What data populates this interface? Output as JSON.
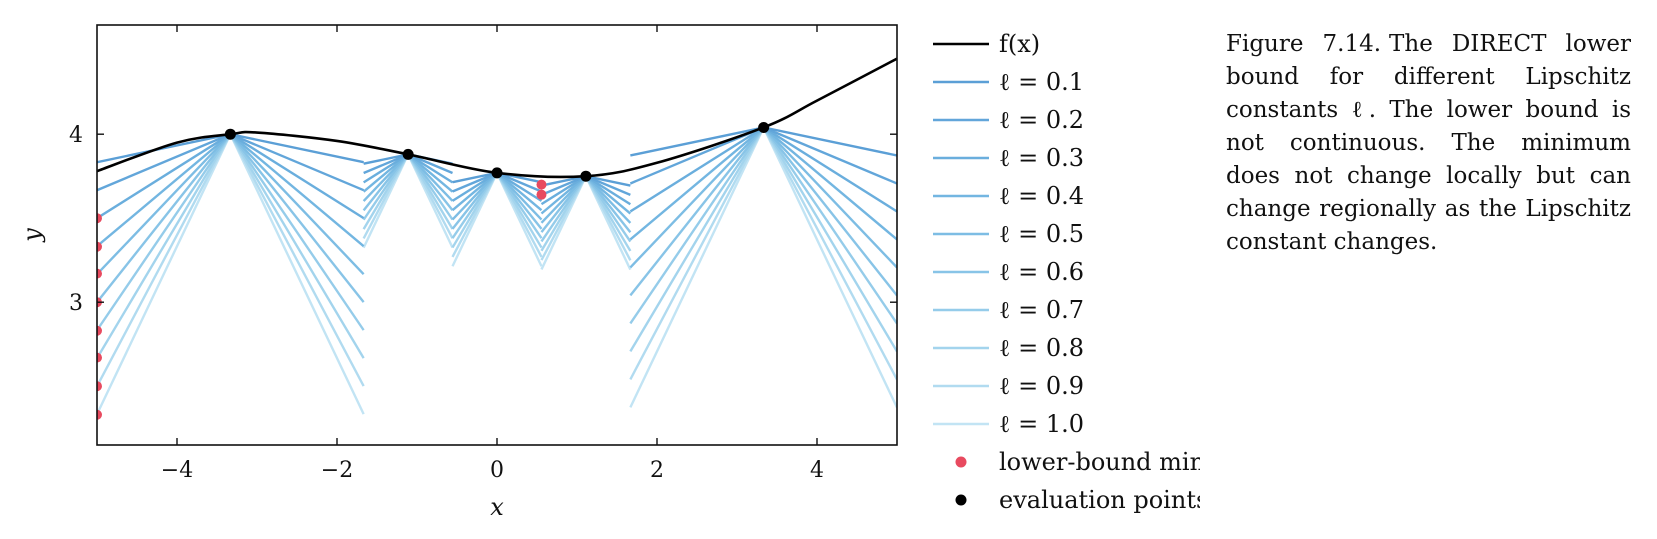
{
  "caption": {
    "number": "Figure 7.14.",
    "text": "The DIRECT lower bound for different Lipschitz constants ℓ. The lower bound is not continuous. The minimum does not change locally but can change regionally as the Lipschitz constant changes."
  },
  "chart_data": {
    "type": "line",
    "xlabel": "x",
    "ylabel": "y",
    "xlim": [
      -5,
      5
    ],
    "ylim": [
      2.15,
      4.65
    ],
    "xticks": [
      -4,
      -2,
      0,
      2,
      4
    ],
    "xtick_labels": [
      "−4",
      "−2",
      "0",
      "2",
      "4"
    ],
    "yticks": [
      3,
      4
    ],
    "ytick_labels": [
      "3",
      "4"
    ],
    "grid": false,
    "legend_placement": "outside-right",
    "function": {
      "name": "f(x)",
      "color": "#000000",
      "x": [
        -5,
        -4,
        -3.33,
        -3,
        -2,
        -1.11,
        0,
        1.11,
        2,
        3.33,
        4,
        5
      ],
      "y": [
        3.78,
        3.95,
        4.0,
        4.01,
        3.96,
        3.88,
        3.77,
        3.75,
        3.83,
        4.04,
        4.2,
        4.45
      ]
    },
    "intervals": [
      [
        -5,
        -1.667
      ],
      [
        -1.667,
        -0.556
      ],
      [
        -0.556,
        0.556
      ],
      [
        0.556,
        1.667
      ],
      [
        1.667,
        5
      ]
    ],
    "evaluation_points": {
      "x": [
        -3.333,
        -1.111,
        0,
        1.111,
        3.333
      ],
      "y": [
        4.0,
        3.88,
        3.77,
        3.75,
        4.04
      ]
    },
    "lipschitz_constants": [
      0.1,
      0.2,
      0.3,
      0.4,
      0.5,
      0.6,
      0.7,
      0.8,
      0.9,
      1.0
    ],
    "lower_bound_colors": [
      "#5b9fd6",
      "#62a6da",
      "#6aaedd",
      "#73b6e1",
      "#7dbde4",
      "#88c4e7",
      "#95ccea",
      "#a3d4ed",
      "#b1dbf0",
      "#c2e4f4"
    ],
    "lower_bound_minima": {
      "color": "#e84a5f",
      "x": [
        -5,
        -5,
        -5,
        -5,
        -5,
        -5,
        -5,
        -5,
        0.556,
        0.556
      ],
      "y": [
        3.5,
        3.33,
        3.17,
        3.0,
        2.83,
        2.67,
        2.5,
        2.33,
        3.7,
        3.64
      ]
    },
    "legend": [
      {
        "label": "f(x)",
        "kind": "line",
        "color": "#000000"
      },
      {
        "label": "ℓ = 0.1",
        "kind": "line",
        "color": "#5b9fd6"
      },
      {
        "label": "ℓ = 0.2",
        "kind": "line",
        "color": "#62a6da"
      },
      {
        "label": "ℓ = 0.3",
        "kind": "line",
        "color": "#6aaedd"
      },
      {
        "label": "ℓ = 0.4",
        "kind": "line",
        "color": "#73b6e1"
      },
      {
        "label": "ℓ = 0.5",
        "kind": "line",
        "color": "#7dbde4"
      },
      {
        "label": "ℓ = 0.6",
        "kind": "line",
        "color": "#88c4e7"
      },
      {
        "label": "ℓ = 0.7",
        "kind": "line",
        "color": "#95ccea"
      },
      {
        "label": "ℓ = 0.8",
        "kind": "line",
        "color": "#a3d4ed"
      },
      {
        "label": "ℓ = 0.9",
        "kind": "line",
        "color": "#b1dbf0"
      },
      {
        "label": "ℓ = 1.0",
        "kind": "line",
        "color": "#c2e4f4"
      },
      {
        "label": "lower-bound minima",
        "kind": "marker",
        "color": "#e84a5f"
      },
      {
        "label": "evaluation points",
        "kind": "marker",
        "color": "#000000"
      }
    ]
  }
}
